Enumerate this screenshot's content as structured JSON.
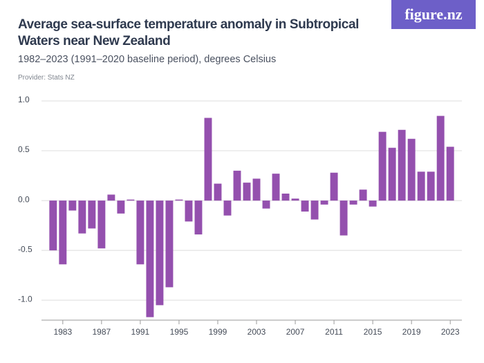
{
  "chart_data": {
    "type": "bar",
    "title": "Average sea-surface temperature anomaly in Subtropical Waters near New Zealand",
    "subtitle": "1982–2023 (1991–2020 baseline period), degrees Celsius",
    "provider": "Provider: Stats NZ",
    "logo": "figure.nz",
    "x": [
      1982,
      1983,
      1984,
      1985,
      1986,
      1987,
      1988,
      1989,
      1990,
      1991,
      1992,
      1993,
      1994,
      1995,
      1996,
      1997,
      1998,
      1999,
      2000,
      2001,
      2002,
      2003,
      2004,
      2005,
      2006,
      2007,
      2008,
      2009,
      2010,
      2011,
      2012,
      2013,
      2014,
      2015,
      2016,
      2017,
      2018,
      2019,
      2020,
      2021,
      2022,
      2023
    ],
    "values": [
      -0.5,
      -0.64,
      -0.1,
      -0.33,
      -0.28,
      -0.48,
      0.06,
      -0.13,
      0.01,
      -0.64,
      -1.17,
      -1.05,
      -0.87,
      0.01,
      -0.21,
      -0.34,
      0.83,
      0.17,
      -0.15,
      0.3,
      0.18,
      0.22,
      -0.08,
      0.27,
      0.07,
      0.02,
      -0.11,
      -0.19,
      -0.04,
      0.28,
      -0.35,
      -0.04,
      0.11,
      -0.06,
      0.69,
      0.53,
      0.71,
      0.62,
      0.29,
      0.29,
      0.85,
      0.54
    ],
    "color": "#9450ae",
    "xlim": [
      1980.8,
      2024.2
    ],
    "xticks": [
      1983,
      1987,
      1991,
      1995,
      1999,
      2003,
      2007,
      2011,
      2015,
      2019,
      2023
    ],
    "ylim": [
      -1.2,
      1.0
    ],
    "yticks": [
      {
        "value": -1,
        "label": "-1.0"
      },
      -0.5,
      {
        "value": 0,
        "label": "0.0"
      },
      0.5,
      {
        "value": 1,
        "label": "1.0"
      }
    ],
    "grid": true
  }
}
